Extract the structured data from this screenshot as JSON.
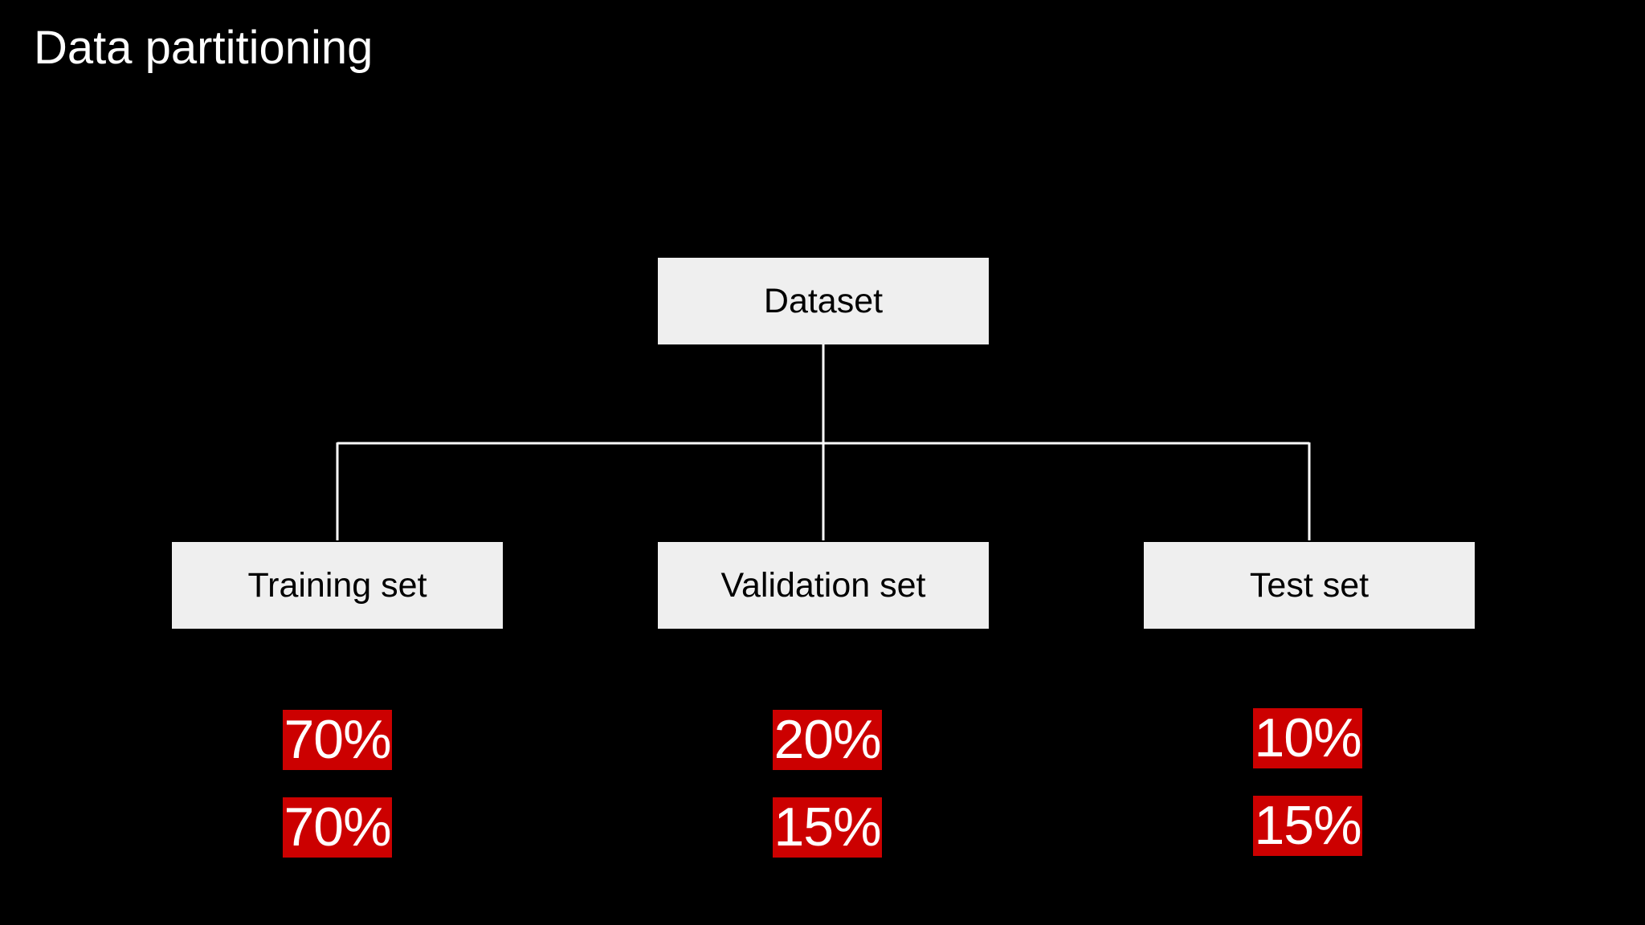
{
  "title": "Data partitioning",
  "diagram": {
    "root": {
      "label": "Dataset"
    },
    "children": [
      {
        "label": "Training set",
        "percentages": [
          "70%",
          "70%"
        ]
      },
      {
        "label": "Validation set",
        "percentages": [
          "20%",
          "15%"
        ]
      },
      {
        "label": "Test set",
        "percentages": [
          "10%",
          "15%"
        ]
      }
    ]
  },
  "colors": {
    "background": "#000000",
    "box_fill": "#efefef",
    "box_text": "#000000",
    "connector": "#ffffff",
    "percentage_fill": "#cc0000",
    "percentage_text": "#ffffff",
    "title_text": "#ffffff"
  }
}
